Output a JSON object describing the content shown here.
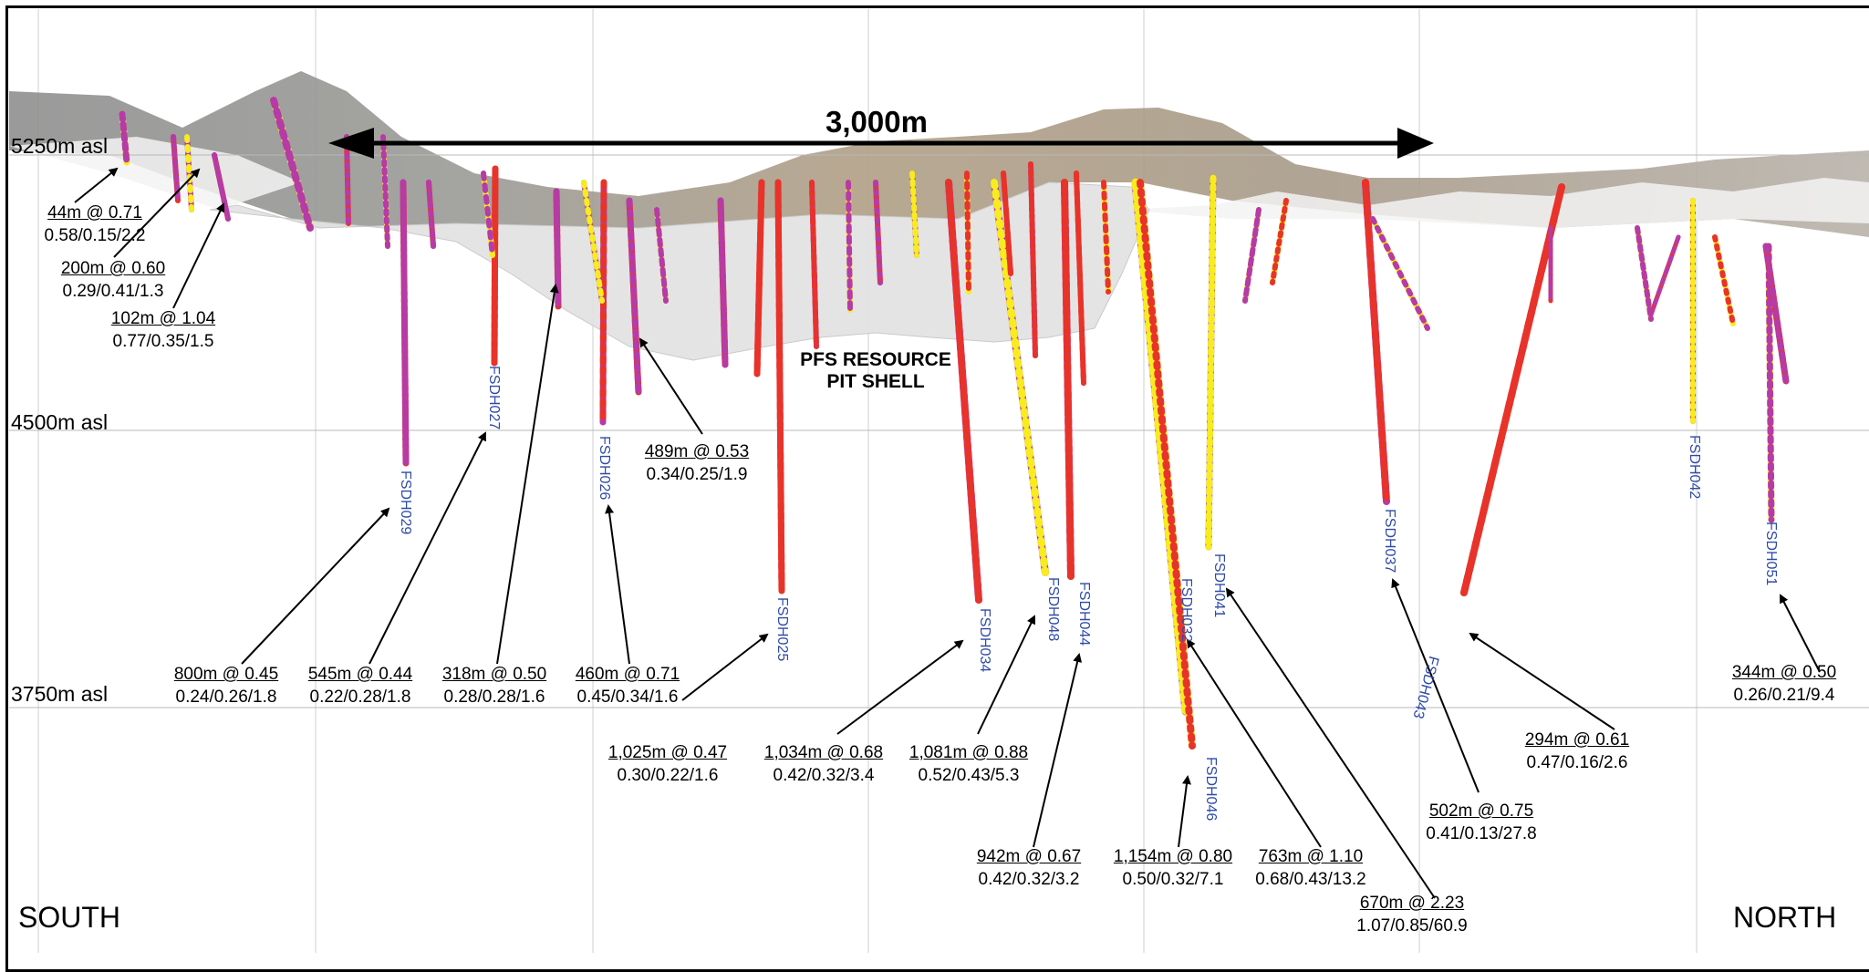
{
  "labels": {
    "span": "3,000m",
    "pit_line1": "PFS RESOURCE",
    "pit_line2": "PIT SHELL",
    "south": "SOUTH",
    "north": "NORTH"
  },
  "elevations": [
    "5250m asl",
    "4500m asl",
    "3750m asl"
  ],
  "colors": {
    "hole_low": "#f7ec1e",
    "hole_mid": "#e8332a",
    "hole_high": "#b63ba6",
    "hole_blank": "#c8c8c8",
    "pit_shell": "#e3e3e3",
    "terrain": "#a79a88",
    "hole_label": "#2e4aa8"
  },
  "holes": [
    {
      "id": "FSDH029"
    },
    {
      "id": "FSDH027"
    },
    {
      "id": "FSDH026"
    },
    {
      "id": "FSDH025"
    },
    {
      "id": "FSDH034"
    },
    {
      "id": "FSDH048"
    },
    {
      "id": "FSDH044"
    },
    {
      "id": "FSDH032"
    },
    {
      "id": "FSDH046"
    },
    {
      "id": "FSDH041"
    },
    {
      "id": "FSDH037"
    },
    {
      "id": "FSDH043"
    },
    {
      "id": "FSDH042"
    },
    {
      "id": "FSDH051"
    }
  ],
  "intercepts": [
    {
      "main": "44m @ 0.71",
      "sub": "0.58/0.15/2.2"
    },
    {
      "main": "200m @ 0.60",
      "sub": "0.29/0.41/1.3"
    },
    {
      "main": "102m @ 1.04",
      "sub": "0.77/0.35/1.5"
    },
    {
      "main": "489m @ 0.53",
      "sub": "0.34/0.25/1.9"
    },
    {
      "main": "800m @ 0.45",
      "sub": "0.24/0.26/1.8"
    },
    {
      "main": "545m @ 0.44",
      "sub": "0.22/0.28/1.8"
    },
    {
      "main": "318m @ 0.50",
      "sub": "0.28/0.28/1.6"
    },
    {
      "main": "460m @ 0.71",
      "sub": "0.45/0.34/1.6"
    },
    {
      "main": "1,025m @ 0.47",
      "sub": "0.30/0.22/1.6"
    },
    {
      "main": "1,034m @ 0.68",
      "sub": "0.42/0.32/3.4"
    },
    {
      "main": "1,081m @ 0.88",
      "sub": "0.52/0.43/5.3"
    },
    {
      "main": "942m @ 0.67",
      "sub": "0.42/0.32/3.2"
    },
    {
      "main": "1,154m @ 0.80",
      "sub": "0.50/0.32/7.1"
    },
    {
      "main": "763m @ 1.10",
      "sub": "0.68/0.43/13.2"
    },
    {
      "main": "670m @ 2.23",
      "sub": "1.07/0.85/60.9"
    },
    {
      "main": "502m @ 0.75",
      "sub": "0.41/0.13/27.8"
    },
    {
      "main": "294m @ 0.61",
      "sub": "0.47/0.16/2.6"
    },
    {
      "main": "344m @ 0.50",
      "sub": "0.26/0.21/9.4"
    }
  ]
}
